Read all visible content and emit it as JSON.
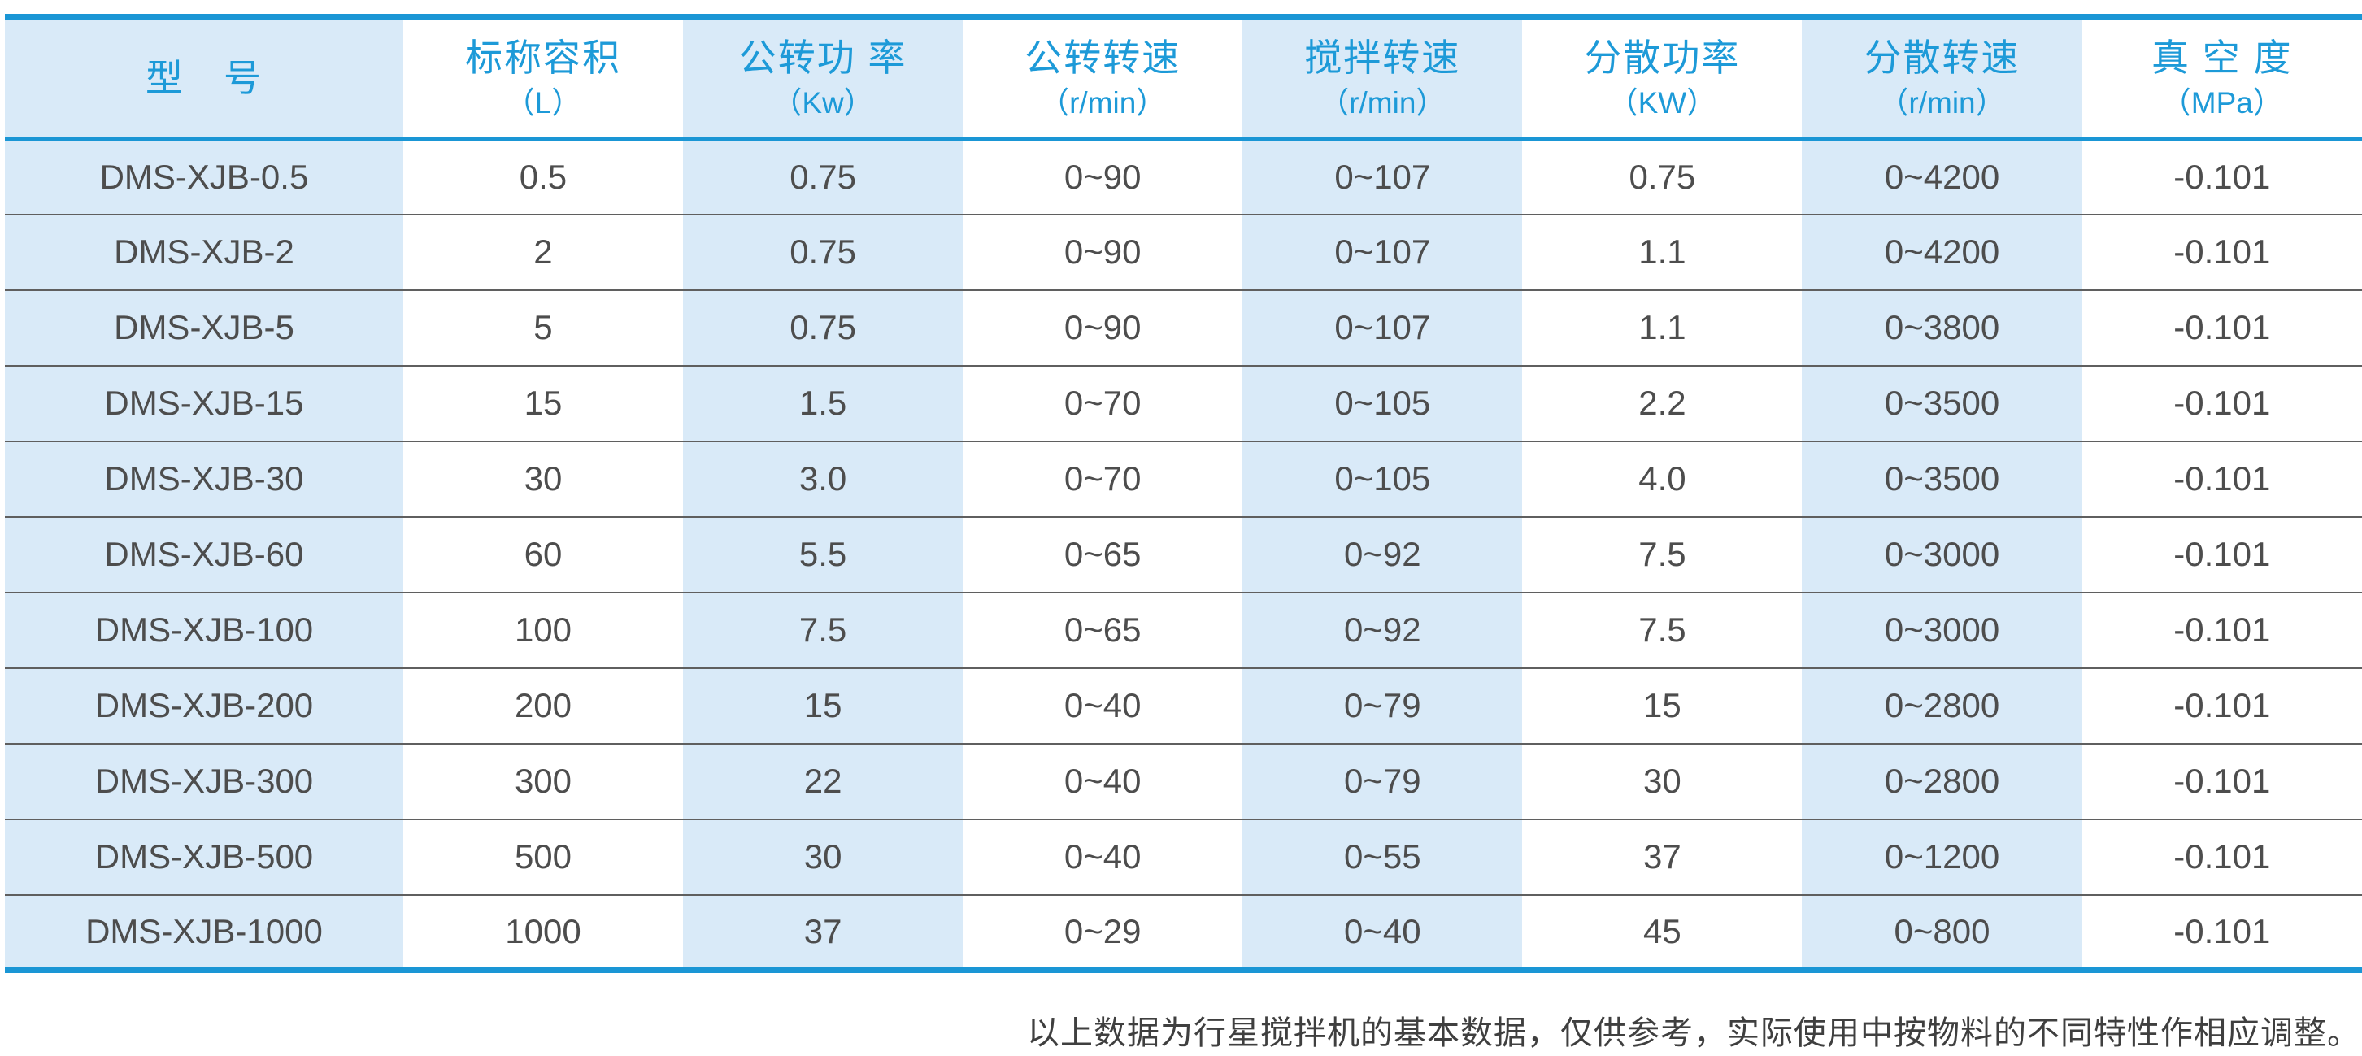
{
  "colors": {
    "accent_blue": "#1a96d5",
    "header_text": "#1d9ad8",
    "stripe_blue": "#d9eaf8",
    "body_text": "#4d4d4d",
    "divider": "#5f5f5f",
    "note_text": "#3f3f3f"
  },
  "table": {
    "columns": [
      {
        "title": "型　号",
        "unit": ""
      },
      {
        "title": "标称容积",
        "unit": "（L）"
      },
      {
        "title": "公转功 率",
        "unit": "（Kw）"
      },
      {
        "title": "公转转速",
        "unit": "（r/min）"
      },
      {
        "title": "搅拌转速",
        "unit": "（r/min）"
      },
      {
        "title": "分散功率",
        "unit": "（KW）"
      },
      {
        "title": "分散转速",
        "unit": "（r/min）"
      },
      {
        "title": "真 空 度",
        "unit": "（MPa）"
      }
    ],
    "rows": [
      [
        "DMS-XJB-0.5",
        "0.5",
        "0.75",
        "0~90",
        "0~107",
        "0.75",
        "0~4200",
        "-0.101"
      ],
      [
        "DMS-XJB-2",
        "2",
        "0.75",
        "0~90",
        "0~107",
        "1.1",
        "0~4200",
        "-0.101"
      ],
      [
        "DMS-XJB-5",
        "5",
        "0.75",
        "0~90",
        "0~107",
        "1.1",
        "0~3800",
        "-0.101"
      ],
      [
        "DMS-XJB-15",
        "15",
        "1.5",
        "0~70",
        "0~105",
        "2.2",
        "0~3500",
        "-0.101"
      ],
      [
        "DMS-XJB-30",
        "30",
        "3.0",
        "0~70",
        "0~105",
        "4.0",
        "0~3500",
        "-0.101"
      ],
      [
        "DMS-XJB-60",
        "60",
        "5.5",
        "0~65",
        "0~92",
        "7.5",
        "0~3000",
        "-0.101"
      ],
      [
        "DMS-XJB-100",
        "100",
        "7.5",
        "0~65",
        "0~92",
        "7.5",
        "0~3000",
        "-0.101"
      ],
      [
        "DMS-XJB-200",
        "200",
        "15",
        "0~40",
        "0~79",
        "15",
        "0~2800",
        "-0.101"
      ],
      [
        "DMS-XJB-300",
        "300",
        "22",
        "0~40",
        "0~79",
        "30",
        "0~2800",
        "-0.101"
      ],
      [
        "DMS-XJB-500",
        "500",
        "30",
        "0~40",
        "0~55",
        "37",
        "0~1200",
        "-0.101"
      ],
      [
        "DMS-XJB-1000",
        "1000",
        "37",
        "0~29",
        "0~40",
        "45",
        "0~800",
        "-0.101"
      ]
    ]
  },
  "footer": {
    "note": "以上数据为行星搅拌机的基本数据，仅供参考，实际使用中按物料的不同特性作相应调整。"
  }
}
